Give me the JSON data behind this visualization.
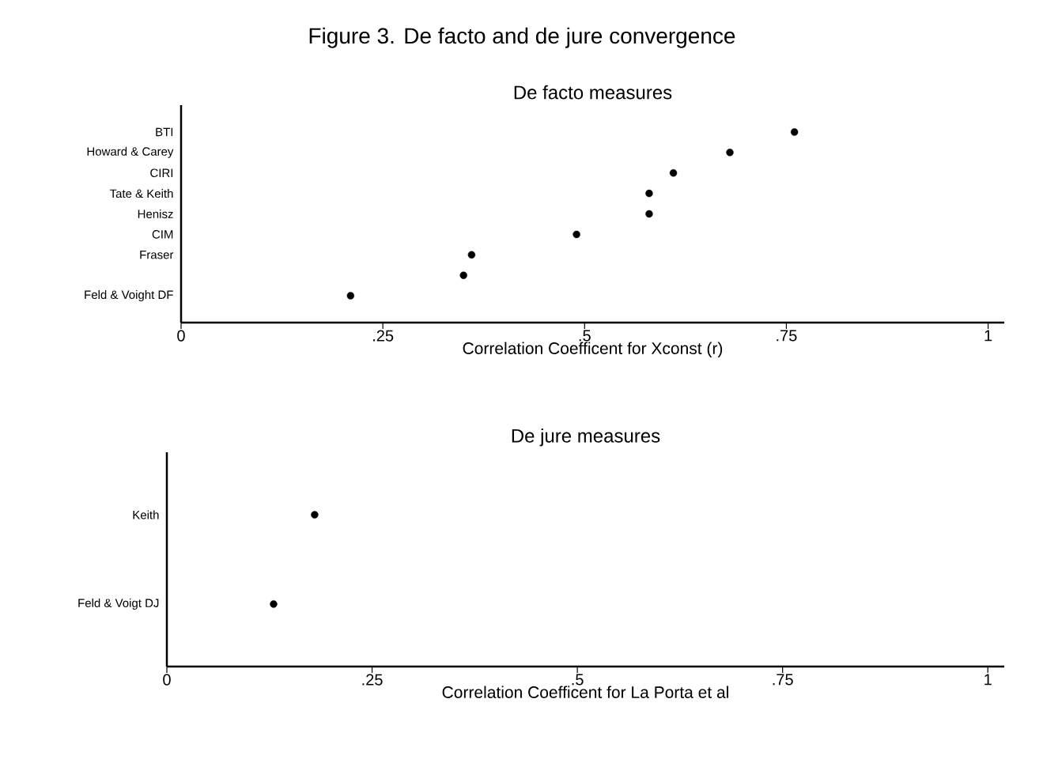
{
  "chart_data": [
    {
      "type": "scatter",
      "orientation": "horizontal",
      "title": "Figure 3. De facto and de jure convergence",
      "subtitle": "De facto measures",
      "xlabel": "Correlation Coefficent for Xconst (r)",
      "categories": [
        "BTI",
        "Howard & Carey",
        "CIRI",
        "Tate & Keith",
        "Henisz",
        "CIM",
        "Fraser",
        null,
        "Feld & Voight DF"
      ],
      "values": [
        0.76,
        0.68,
        0.61,
        0.58,
        0.58,
        0.49,
        0.36,
        0.35,
        0.21
      ],
      "color": "#000000",
      "marker": "circle",
      "xlim": [
        0,
        1.02
      ],
      "xticks": [
        0,
        {
          "value": 0.25,
          "label": ".25"
        },
        {
          "value": 0.5,
          "label": ".5"
        },
        {
          "value": 0.75,
          "label": ".75"
        },
        1
      ]
    },
    {
      "type": "scatter",
      "orientation": "horizontal",
      "title": "De jure measures",
      "xlabel": "Correlation Coefficent for La Porta et al",
      "categories": [
        "Keith",
        "Feld & Voigt DJ"
      ],
      "values": [
        0.18,
        0.13
      ],
      "color": "#000000",
      "marker": "circle",
      "xlim": [
        0,
        1.02
      ],
      "xticks": [
        0,
        {
          "value": 0.25,
          "label": ".25"
        },
        {
          "value": 0.5,
          "label": ".5"
        },
        {
          "value": 0.75,
          "label": ".75"
        },
        1
      ]
    }
  ]
}
